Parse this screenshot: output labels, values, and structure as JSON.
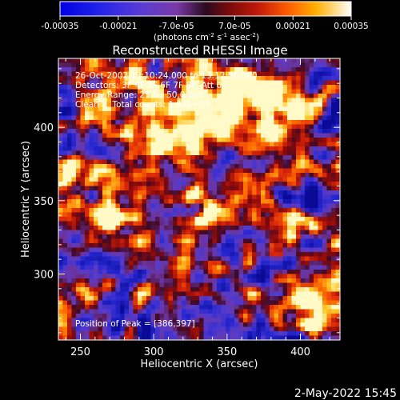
{
  "colorbar": {
    "tick_labels": [
      "-0.00035",
      "-0.00021",
      "-7.0e-05",
      "7.0e-05",
      "0.00021",
      "0.00035"
    ],
    "tick_values": [
      -0.00035,
      -0.00021,
      -7e-05,
      7e-05,
      0.00021,
      0.00035
    ],
    "range": [
      -0.00035,
      0.00035
    ],
    "units_prefix": "(photons cm",
    "units_exp1": "-2",
    "units_mid": " s",
    "units_exp2": "-1",
    "units_mid2": " asec",
    "units_exp3": "-2",
    "units_suffix": ")"
  },
  "chart_data": {
    "type": "heatmap",
    "title": "Reconstructed RHESSI Image",
    "xlabel": "Heliocentric X (arcsec)",
    "ylabel": "Heliocentric Y (arcsec)",
    "x_ticks": [
      250,
      300,
      350,
      400
    ],
    "y_ticks": [
      300,
      350,
      400
    ],
    "xlim": [
      235,
      427
    ],
    "ylim": [
      255,
      447
    ],
    "annotations": [
      "26-Oct-2002 13:10:24.000 to 13:12:56.000",
      "Detectors: 3F 4F 5F 6F 7F 8F, Att 0",
      "Energy Range: 25.0 - 50.0 keV",
      "Clean     Total counts: 1.97E+03"
    ],
    "peak_label": "Position of Peak = [386,397]",
    "peak_position": [
      386,
      397
    ]
  },
  "footer": {
    "timestamp": "2-May-2022 15:45"
  },
  "colors": {
    "background": "#000000",
    "text": "#ffffff"
  }
}
